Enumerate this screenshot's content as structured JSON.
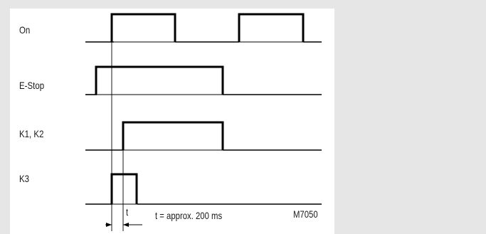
{
  "diagram": {
    "signals": [
      {
        "label": "On"
      },
      {
        "label": "E-Stop"
      },
      {
        "label": "K1, K2"
      },
      {
        "label": "K3"
      }
    ],
    "interval_label": "t",
    "note": "t = approx. 200 ms",
    "code": "M7050"
  }
}
